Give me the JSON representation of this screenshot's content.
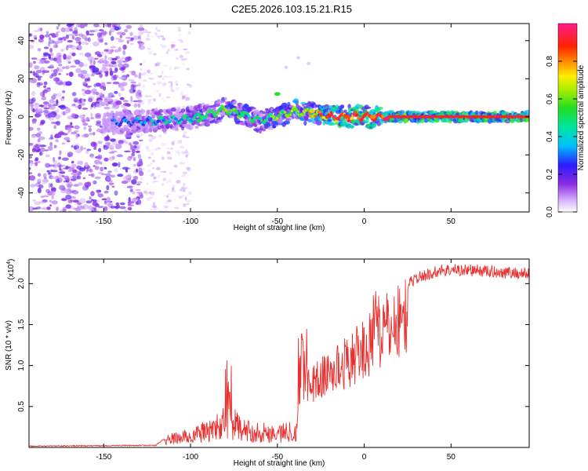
{
  "title": "C2E5.2026.103.15.21.R15",
  "chart_data": [
    {
      "type": "heatmap",
      "xlabel": "Height of straight line (km)",
      "ylabel": "Frequency (Hz)",
      "xlim": [
        -193,
        95
      ],
      "ylim": [
        -50,
        49
      ],
      "x_ticks": [
        -150,
        -100,
        -50,
        0,
        50
      ],
      "y_ticks": [
        -40,
        -20,
        0,
        20,
        40
      ],
      "colorbar": {
        "label": "Normalized spectral amplitude",
        "range": [
          0,
          1
        ],
        "ticks": [
          0.0,
          0.2,
          0.4,
          0.6,
          0.8
        ]
      },
      "ridge": {
        "description_points": [
          {
            "x": -145,
            "y": -3,
            "amp": 0.25
          },
          {
            "x": -120,
            "y": -2,
            "amp": 0.35
          },
          {
            "x": -100,
            "y": -1,
            "amp": 0.4
          },
          {
            "x": -80,
            "y": 4,
            "amp": 0.5
          },
          {
            "x": -60,
            "y": -2,
            "amp": 0.45
          },
          {
            "x": -40,
            "y": 3,
            "amp": 0.55
          },
          {
            "x": -20,
            "y": 0,
            "amp": 0.8
          },
          {
            "x": 0,
            "y": 0,
            "amp": 0.85
          },
          {
            "x": 20,
            "y": 0,
            "amp": 0.9
          },
          {
            "x": 95,
            "y": 0,
            "amp": 0.9
          }
        ]
      }
    },
    {
      "type": "line",
      "xlabel": "Height of straight line (km)",
      "ylabel": "SNR (10 * v/v)",
      "scale_label": "(x10",
      "scale_exp": "4",
      "scale_close": ")",
      "xlim": [
        -193,
        95
      ],
      "ylim": [
        0,
        2.3
      ],
      "x_ticks": [
        -150,
        -100,
        -50,
        0,
        50
      ],
      "y_ticks": [
        0.5,
        1.0,
        1.5,
        2.0
      ],
      "color": "#e8312f",
      "envelope": [
        {
          "x": -193,
          "y": 0.01
        },
        {
          "x": -120,
          "y": 0.02
        },
        {
          "x": -112,
          "y": 0.15
        },
        {
          "x": -100,
          "y": 0.2
        },
        {
          "x": -85,
          "y": 0.35
        },
        {
          "x": -78,
          "y": 0.5
        },
        {
          "x": -70,
          "y": 0.3
        },
        {
          "x": -50,
          "y": 0.25
        },
        {
          "x": -40,
          "y": 0.3
        },
        {
          "x": -35,
          "y": 0.9
        },
        {
          "x": -25,
          "y": 1.05
        },
        {
          "x": -10,
          "y": 1.3
        },
        {
          "x": 5,
          "y": 1.6
        },
        {
          "x": 15,
          "y": 1.85
        },
        {
          "x": 30,
          "y": 2.1
        },
        {
          "x": 45,
          "y": 2.2
        },
        {
          "x": 60,
          "y": 2.2
        },
        {
          "x": 95,
          "y": 2.15
        }
      ]
    }
  ]
}
